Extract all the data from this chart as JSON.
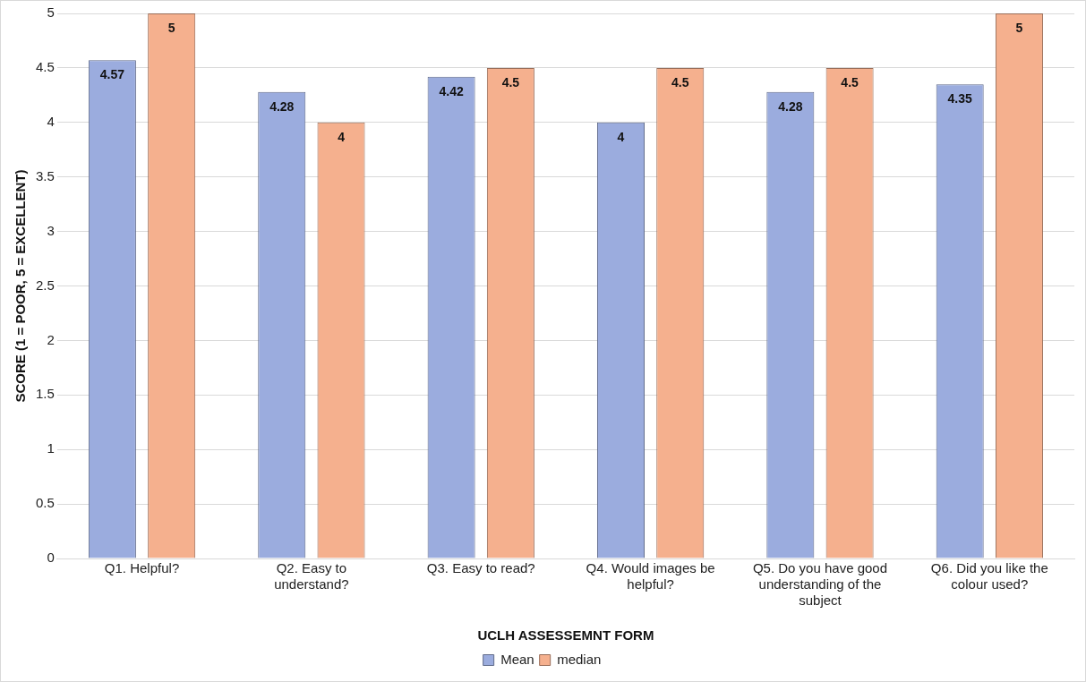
{
  "chart_data": {
    "type": "bar",
    "xlabel": "UCLH ASSESSEMNT FORM",
    "ylabel": "SCORE (1 = POOR, 5 = EXCELLENT)",
    "categories": [
      "Q1. Helpful?",
      "Q2. Easy to understand?",
      "Q3. Easy to read?",
      "Q4. Would images be helpful?",
      "Q5. Do you have good understanding of the subject",
      "Q6. Did you like the colour used?"
    ],
    "series": [
      {
        "name": "Mean",
        "color": "#9bacde",
        "values": [
          4.57,
          4.28,
          4.42,
          4,
          4.28,
          4.35
        ]
      },
      {
        "name": "median",
        "color": "#f5b08e",
        "values": [
          5,
          4,
          4.5,
          4.5,
          4.5,
          5
        ]
      }
    ],
    "ylim": [
      0,
      5
    ],
    "yticks": [
      0,
      0.5,
      1,
      1.5,
      2,
      2.5,
      3,
      3.5,
      4,
      4.5,
      5
    ],
    "grid": "y",
    "legend": "bottom",
    "data_labels": true
  }
}
